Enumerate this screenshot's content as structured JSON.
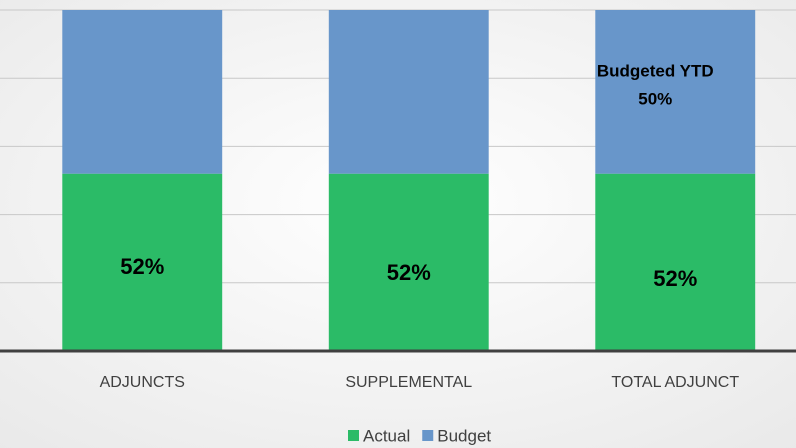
{
  "chart_data": {
    "type": "stacked_bar_100",
    "categories": [
      "ADJUNCTS",
      "SUPPLEMENTAL",
      "TOTAL ADJUNCT"
    ],
    "series": [
      {
        "name": "Actual",
        "color": "#2bbb67",
        "values": [
          52,
          52,
          52
        ],
        "value_labels": [
          "52%",
          "52%",
          "52%"
        ]
      },
      {
        "name": "Budget",
        "color": "#6896ca",
        "values": [
          48,
          48,
          48
        ]
      }
    ],
    "annotation": [
      "Budgeted YTD",
      "50%"
    ],
    "ylim": [
      0,
      100
    ],
    "yticks": [
      0,
      20,
      40,
      60,
      80,
      100
    ],
    "grid": true,
    "legend": "bottom"
  }
}
